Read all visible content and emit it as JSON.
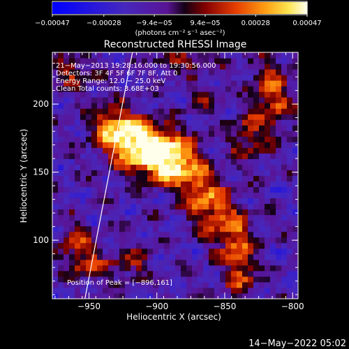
{
  "chart_data": {
    "type": "heatmap",
    "title": "Reconstructed RHESSI Image",
    "xlabel": "Heliocentric X (arcsec)",
    "ylabel": "Heliocentric Y (arcsec)",
    "xlim": [
      -977,
      -796
    ],
    "ylim": [
      57,
      238
    ],
    "x_ticks": [
      -950,
      -900,
      -850,
      -800
    ],
    "x_tick_labels": [
      "−950",
      "−900",
      "−850",
      "−800"
    ],
    "y_ticks": [
      100,
      150,
      200
    ],
    "y_tick_labels": [
      "100",
      "150",
      "200"
    ],
    "colorbar": {
      "range": [
        -0.00047,
        0.00047
      ],
      "tick_values": [
        -0.00047,
        -0.00028,
        -9.4e-05,
        9.4e-05,
        0.00028,
        0.00047
      ],
      "tick_labels": [
        "−0.00047",
        "−0.00028",
        "−9.4e−05",
        "9.4e−05",
        "0.00028",
        "0.00047"
      ],
      "unit_label": "(photons cm⁻² s⁻¹ asec⁻²)"
    },
    "annotations": [
      "21−May−2013 19:28:16.000 to 19:30:56.000",
      "Detectors: 3F 4F 5F 6F 7F 8F, Att 0",
      "Energy Range: 12.0 − 25.0 keV",
      "Clean     Total counts: 3.68E+03"
    ],
    "peak_label": "Position of Peak = [−896,161]",
    "peak": [
      -896,
      161
    ],
    "limb_line": [
      [
        -953,
        57
      ],
      [
        -918,
        238
      ]
    ],
    "emission_blobs": [
      {
        "x": -905,
        "y": 165,
        "sx": 16,
        "sy": 12,
        "a": 0.95
      },
      {
        "x": -918,
        "y": 178,
        "sx": 12,
        "sy": 10,
        "a": 0.75
      },
      {
        "x": -890,
        "y": 158,
        "sx": 12,
        "sy": 12,
        "a": 0.7
      },
      {
        "x": -935,
        "y": 185,
        "sx": 10,
        "sy": 12,
        "a": 0.55
      },
      {
        "x": -872,
        "y": 140,
        "sx": 9,
        "sy": 14,
        "a": 0.55
      },
      {
        "x": -858,
        "y": 122,
        "sx": 9,
        "sy": 16,
        "a": 0.55
      },
      {
        "x": -842,
        "y": 105,
        "sx": 8,
        "sy": 14,
        "a": 0.5
      },
      {
        "x": -838,
        "y": 78,
        "sx": 8,
        "sy": 16,
        "a": 0.5
      },
      {
        "x": -815,
        "y": 205,
        "sx": 10,
        "sy": 20,
        "a": 0.55
      },
      {
        "x": -835,
        "y": 175,
        "sx": 9,
        "sy": 12,
        "a": 0.4
      },
      {
        "x": -962,
        "y": 225,
        "sx": 10,
        "sy": 8,
        "a": 0.45
      },
      {
        "x": -960,
        "y": 100,
        "sx": 8,
        "sy": 10,
        "a": 0.45
      },
      {
        "x": -950,
        "y": 82,
        "sx": 10,
        "sy": 8,
        "a": 0.45
      },
      {
        "x": -918,
        "y": 82,
        "sx": 10,
        "sy": 8,
        "a": 0.35
      },
      {
        "x": -865,
        "y": 205,
        "sx": 8,
        "sy": 7,
        "a": 0.25
      },
      {
        "x": -880,
        "y": 232,
        "sx": 14,
        "sy": 6,
        "a": 0.4
      }
    ]
  },
  "footer": {
    "timestamp": "14−May−2022 05:02"
  }
}
